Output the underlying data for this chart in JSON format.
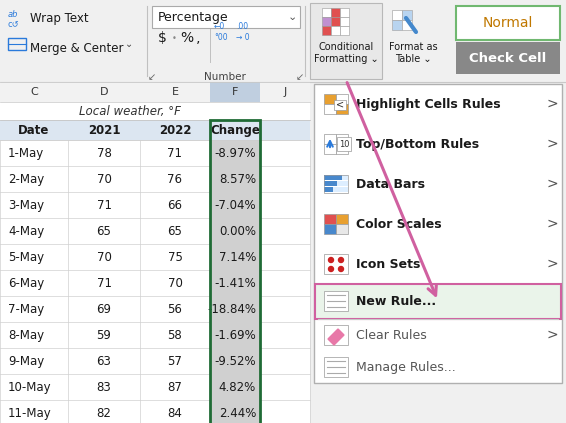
{
  "toolbar_bg": "#f0f0f0",
  "wrap_text": "Wrap Text",
  "merge_center": "Merge & Center",
  "number_format": "Percentage",
  "number_label": "Number",
  "conditional_formatting": "Conditional\nFormatting",
  "format_as_table": "Format as\nTable",
  "normal_label": "Normal",
  "check_cell_label": "Check Cell",
  "table_header": "Local weather, °F",
  "col_headers": [
    "C",
    "D",
    "E",
    "F",
    "J"
  ],
  "row_headers": [
    "Date",
    "2021",
    "2022",
    "Change"
  ],
  "rows": [
    [
      "1-May",
      "78",
      "71",
      "-8.97%"
    ],
    [
      "2-May",
      "70",
      "76",
      "8.57%"
    ],
    [
      "3-May",
      "71",
      "66",
      "-7.04%"
    ],
    [
      "4-May",
      "65",
      "65",
      "0.00%"
    ],
    [
      "5-May",
      "70",
      "75",
      "7.14%"
    ],
    [
      "6-May",
      "71",
      "70",
      "-1.41%"
    ],
    [
      "7-May",
      "69",
      "56",
      "-18.84%"
    ],
    [
      "8-May",
      "59",
      "58",
      "-1.69%"
    ],
    [
      "9-May",
      "63",
      "57",
      "-9.52%"
    ],
    [
      "10-May",
      "83",
      "87",
      "4.82%"
    ],
    [
      "11-May",
      "82",
      "84",
      "2.44%"
    ]
  ],
  "menu_items": [
    "Highlight Cells Rules",
    "Top/Bottom Rules",
    "Data Bars",
    "Color Scales",
    "Icon Sets",
    "New Rule...",
    "Clear Rules",
    "Manage Rules..."
  ],
  "menu_has_arrow": [
    true,
    true,
    true,
    true,
    true,
    false,
    true,
    false
  ],
  "menu_item_heights": [
    40,
    40,
    40,
    40,
    40,
    35,
    32,
    32
  ],
  "menu_bg": "#ffffff",
  "menu_hover_bg": "#eaf4ea",
  "menu_hover_border": "#d060a0",
  "menu_border": "#c8c8c8",
  "arrow_color": "#d060a0",
  "col_f_border": "#1f6b35",
  "grid_color": "#d4d4d4",
  "toolbar_border": "#c8c8c8",
  "header_bg": "#dce6f1",
  "change_col_bg_light": "#d0d0d0",
  "change_col_bg_dark": "#c0c0c0"
}
